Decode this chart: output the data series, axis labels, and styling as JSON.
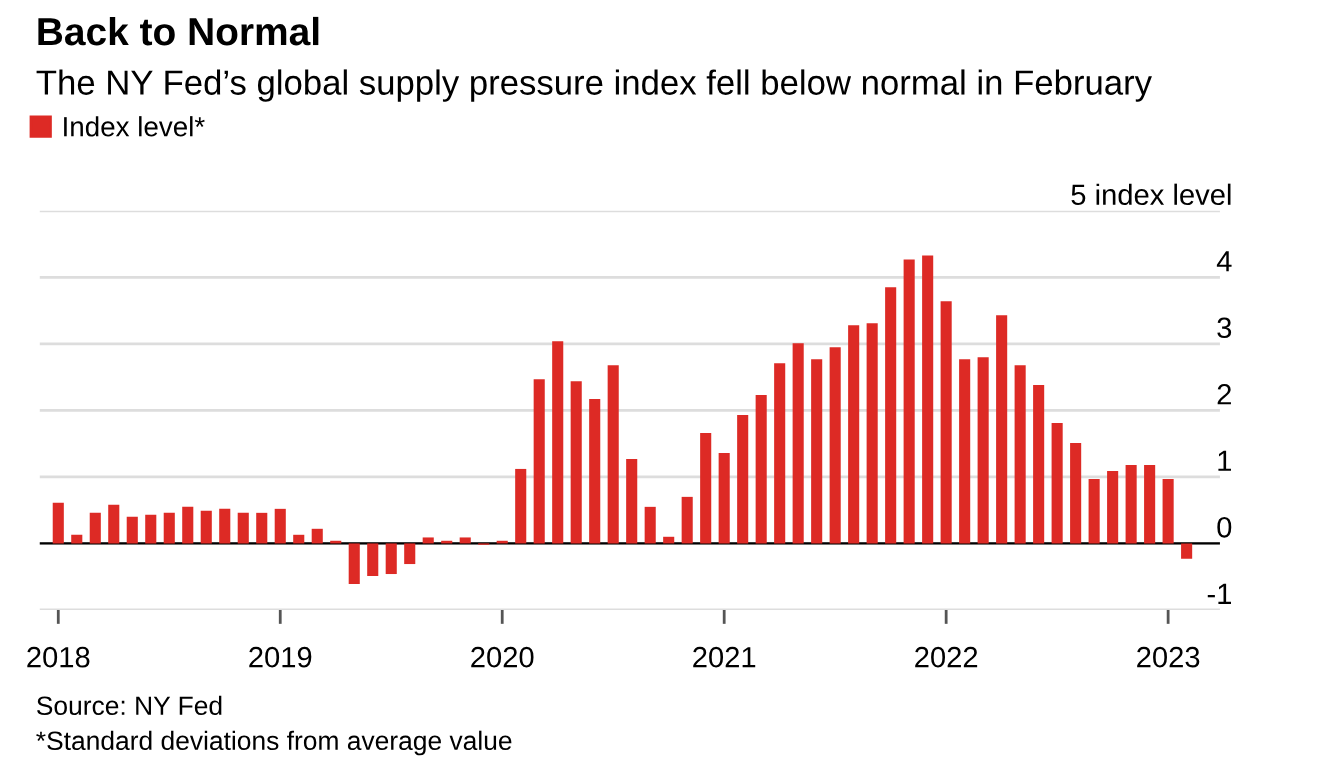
{
  "chart_data": {
    "type": "bar",
    "title": "Back to Normal",
    "subtitle": "The NY Fed’s global supply pressure index fell below normal in February",
    "categories": [
      "2018",
      null,
      null,
      null,
      null,
      null,
      null,
      null,
      null,
      null,
      null,
      null,
      "2019",
      null,
      null,
      null,
      null,
      null,
      null,
      null,
      null,
      null,
      null,
      null,
      "2020",
      null,
      null,
      null,
      null,
      null,
      null,
      null,
      null,
      null,
      null,
      null,
      "2021",
      null,
      null,
      null,
      null,
      null,
      null,
      null,
      null,
      null,
      null,
      null,
      "2022",
      null,
      null,
      null,
      null,
      null,
      null,
      null,
      null,
      null,
      null,
      null,
      "2023",
      null
    ],
    "series": [
      {
        "name": "Index level*",
        "color": "#dd2a25",
        "values": [
          0.61,
          0.13,
          0.46,
          0.58,
          0.4,
          0.43,
          0.46,
          0.55,
          0.49,
          0.52,
          0.46,
          0.46,
          0.52,
          0.13,
          0.22,
          0.04,
          -0.61,
          -0.49,
          -0.46,
          -0.31,
          0.09,
          0.04,
          0.09,
          -0.02,
          0.04,
          1.12,
          2.47,
          3.04,
          2.44,
          2.17,
          2.68,
          1.27,
          0.55,
          0.1,
          0.7,
          1.66,
          1.36,
          1.93,
          2.23,
          2.71,
          3.01,
          2.77,
          2.95,
          3.28,
          3.31,
          3.85,
          4.27,
          4.33,
          3.64,
          2.77,
          2.8,
          3.43,
          2.68,
          2.38,
          1.81,
          1.51,
          0.97,
          1.09,
          1.18,
          1.18,
          0.97,
          -0.23
        ]
      }
    ],
    "ylim": [
      -1,
      5
    ],
    "yticks": [
      -1,
      0,
      1,
      2,
      3,
      4,
      {
        "value": 5,
        "label": "5 index level"
      }
    ],
    "grid": "y",
    "legend": "top left",
    "annotations": [
      "Source: NY Fed",
      "*Standard deviations from average value"
    ]
  }
}
